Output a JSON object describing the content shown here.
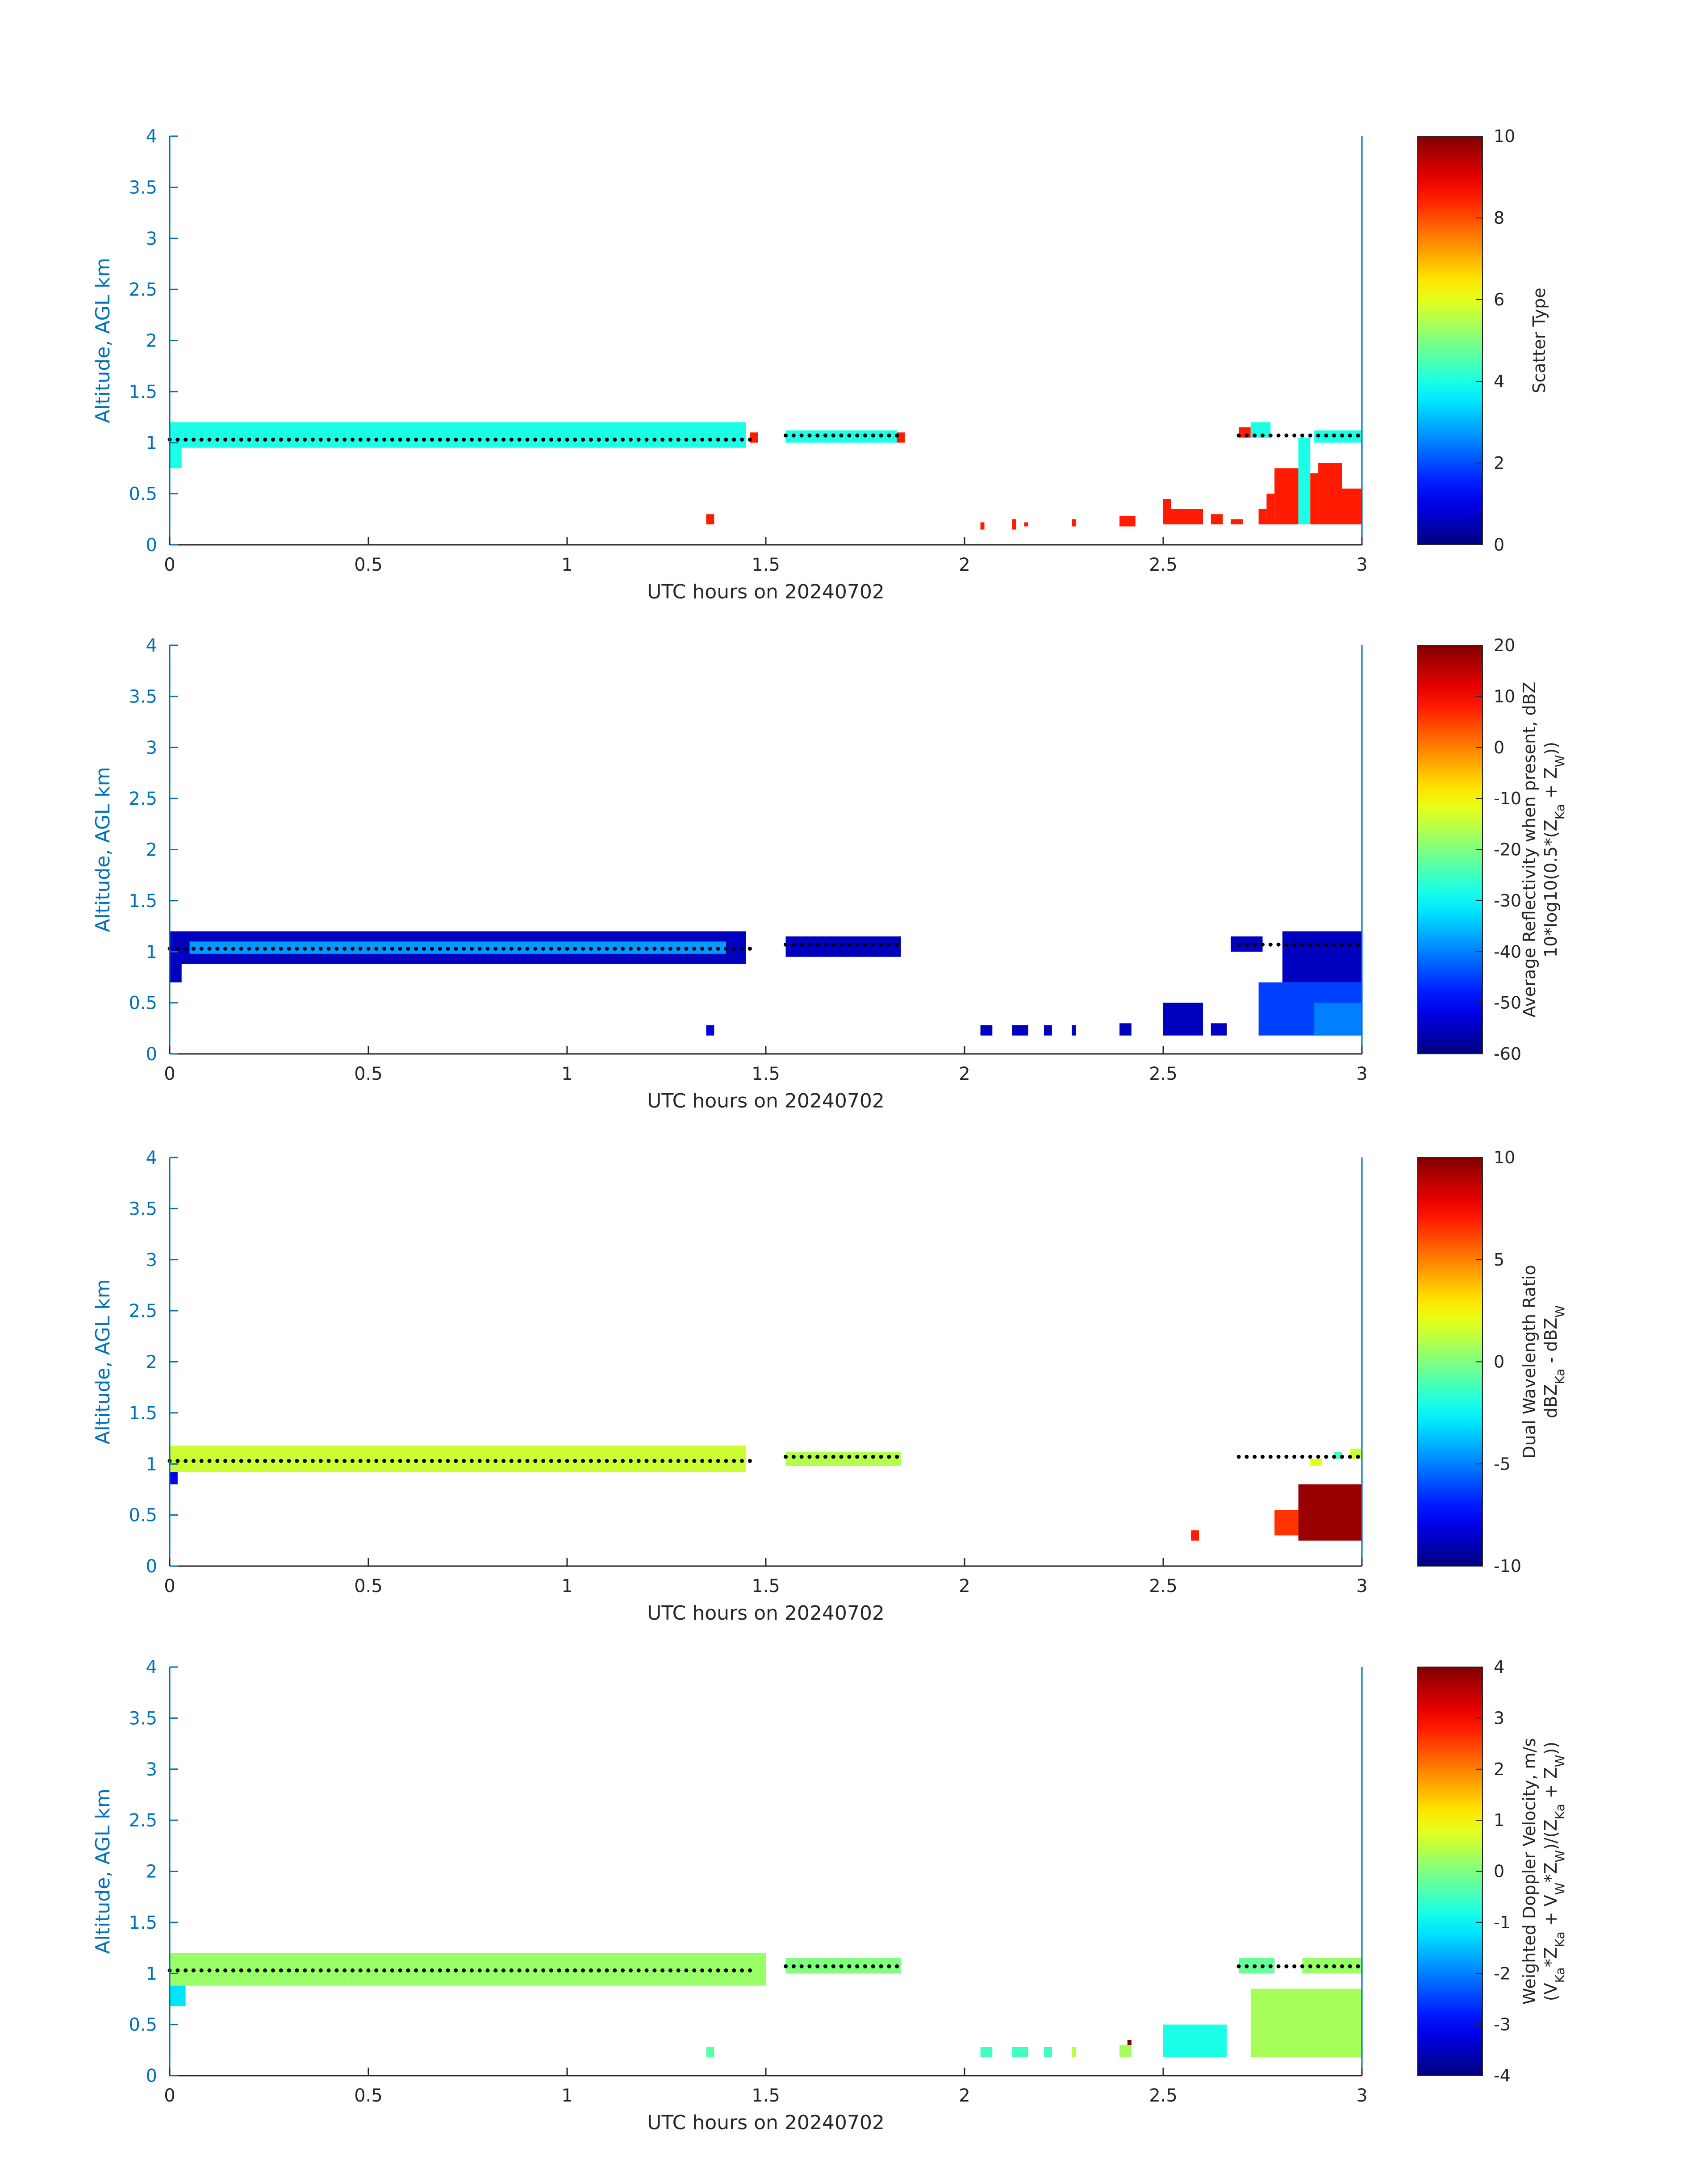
{
  "chart_data": [
    {
      "type": "heatmap",
      "xlabel": "UTC hours on 20240702",
      "ylabel": "Altitude, AGL km",
      "xlim": [
        0,
        3
      ],
      "ylim": [
        0,
        4
      ],
      "xticks": [
        "0",
        "0.5",
        "1",
        "1.5",
        "2",
        "2.5",
        "3"
      ],
      "yticks": [
        "0",
        "0.5",
        "1",
        "1.5",
        "2",
        "2.5",
        "3",
        "3.5",
        "4"
      ],
      "colorbar": {
        "label_lines": [
          "Scatter Type"
        ],
        "ticks": [
          "0",
          "2",
          "4",
          "6",
          "8",
          "10"
        ],
        "clim": [
          0,
          10
        ],
        "colormap": "jet"
      },
      "cells": [
        {
          "x": [
            0.0,
            1.45
          ],
          "y": [
            0.95,
            1.2
          ],
          "value": 4.0
        },
        {
          "x": [
            0.0,
            0.03
          ],
          "y": [
            0.75,
            0.95
          ],
          "value": 4.0
        },
        {
          "x": [
            1.46,
            1.48
          ],
          "y": [
            1.0,
            1.1
          ],
          "value": 8.5
        },
        {
          "x": [
            1.55,
            1.83
          ],
          "y": [
            1.0,
            1.12
          ],
          "value": 4.0
        },
        {
          "x": [
            1.83,
            1.85
          ],
          "y": [
            1.0,
            1.1
          ],
          "value": 8.5
        },
        {
          "x": [
            1.35,
            1.37
          ],
          "y": [
            0.2,
            0.3
          ],
          "value": 8.5
        },
        {
          "x": [
            2.04,
            2.05
          ],
          "y": [
            0.15,
            0.22
          ],
          "value": 8.5
        },
        {
          "x": [
            2.12,
            2.13
          ],
          "y": [
            0.15,
            0.25
          ],
          "value": 8.5
        },
        {
          "x": [
            2.15,
            2.16
          ],
          "y": [
            0.18,
            0.22
          ],
          "value": 8.5
        },
        {
          "x": [
            2.27,
            2.28
          ],
          "y": [
            0.18,
            0.25
          ],
          "value": 8.5
        },
        {
          "x": [
            2.39,
            2.43
          ],
          "y": [
            0.18,
            0.28
          ],
          "value": 8.5
        },
        {
          "x": [
            2.5,
            2.52
          ],
          "y": [
            0.2,
            0.45
          ],
          "value": 8.5
        },
        {
          "x": [
            2.52,
            2.6
          ],
          "y": [
            0.2,
            0.35
          ],
          "value": 8.5
        },
        {
          "x": [
            2.62,
            2.65
          ],
          "y": [
            0.2,
            0.3
          ],
          "value": 8.5
        },
        {
          "x": [
            2.67,
            2.7
          ],
          "y": [
            0.2,
            0.25
          ],
          "value": 8.5
        },
        {
          "x": [
            2.69,
            2.72
          ],
          "y": [
            1.05,
            1.15
          ],
          "value": 8.5
        },
        {
          "x": [
            2.72,
            2.77
          ],
          "y": [
            1.05,
            1.2
          ],
          "value": 4.0
        },
        {
          "x": [
            2.74,
            2.76
          ],
          "y": [
            0.2,
            0.35
          ],
          "value": 8.5
        },
        {
          "x": [
            2.76,
            2.78
          ],
          "y": [
            0.2,
            0.5
          ],
          "value": 8.5
        },
        {
          "x": [
            2.78,
            2.84
          ],
          "y": [
            0.2,
            0.75
          ],
          "value": 8.5
        },
        {
          "x": [
            2.84,
            2.87
          ],
          "y": [
            0.2,
            1.05
          ],
          "value": 4.0
        },
        {
          "x": [
            2.87,
            2.89
          ],
          "y": [
            0.2,
            0.7
          ],
          "value": 8.5
        },
        {
          "x": [
            2.89,
            2.95
          ],
          "y": [
            0.2,
            0.8
          ],
          "value": 8.5
        },
        {
          "x": [
            2.95,
            3.0
          ],
          "y": [
            0.2,
            0.55
          ],
          "value": 8.5
        },
        {
          "x": [
            2.88,
            3.0
          ],
          "y": [
            1.0,
            1.12
          ],
          "value": 4.0
        }
      ],
      "dots": {
        "segments": [
          {
            "x": [
              0.0,
              1.47
            ],
            "y": 1.03
          },
          {
            "x": [
              1.55,
              1.84
            ],
            "y": 1.07
          },
          {
            "x": [
              2.69,
              3.0
            ],
            "y": 1.07
          }
        ]
      }
    },
    {
      "type": "heatmap",
      "xlabel": "UTC hours on 20240702",
      "ylabel": "Altitude, AGL km",
      "xlim": [
        0,
        3
      ],
      "ylim": [
        0,
        4
      ],
      "xticks": [
        "0",
        "0.5",
        "1",
        "1.5",
        "2",
        "2.5",
        "3"
      ],
      "yticks": [
        "0",
        "0.5",
        "1",
        "1.5",
        "2",
        "2.5",
        "3",
        "3.5",
        "4"
      ],
      "colorbar": {
        "label_lines": [
          "Average Reflectivity when present, dBZ",
          "10*log10(0.5*(Z",
          "Ka",
          " + Z",
          "W",
          "))"
        ],
        "ticks": [
          "-60",
          "-50",
          "-40",
          "-30",
          "-20",
          "-10",
          "0",
          "10",
          "20"
        ],
        "clim": [
          -60,
          20
        ],
        "colormap": "jet"
      },
      "cells": [
        {
          "x": [
            0.0,
            1.45
          ],
          "y": [
            0.88,
            1.2
          ],
          "value": -55
        },
        {
          "x": [
            0.05,
            1.4
          ],
          "y": [
            0.98,
            1.1
          ],
          "value": -38
        },
        {
          "x": [
            0.0,
            0.03
          ],
          "y": [
            0.7,
            0.88
          ],
          "value": -55
        },
        {
          "x": [
            1.55,
            1.84
          ],
          "y": [
            0.95,
            1.15
          ],
          "value": -55
        },
        {
          "x": [
            1.35,
            1.37
          ],
          "y": [
            0.18,
            0.28
          ],
          "value": -52
        },
        {
          "x": [
            2.04,
            2.07
          ],
          "y": [
            0.18,
            0.28
          ],
          "value": -55
        },
        {
          "x": [
            2.12,
            2.16
          ],
          "y": [
            0.18,
            0.28
          ],
          "value": -55
        },
        {
          "x": [
            2.2,
            2.22
          ],
          "y": [
            0.18,
            0.28
          ],
          "value": -55
        },
        {
          "x": [
            2.27,
            2.28
          ],
          "y": [
            0.18,
            0.28
          ],
          "value": -55
        },
        {
          "x": [
            2.39,
            2.42
          ],
          "y": [
            0.18,
            0.3
          ],
          "value": -55
        },
        {
          "x": [
            2.5,
            2.6
          ],
          "y": [
            0.18,
            0.5
          ],
          "value": -55
        },
        {
          "x": [
            2.62,
            2.66
          ],
          "y": [
            0.18,
            0.3
          ],
          "value": -55
        },
        {
          "x": [
            2.67,
            2.75
          ],
          "y": [
            1.0,
            1.15
          ],
          "value": -55
        },
        {
          "x": [
            2.74,
            3.0
          ],
          "y": [
            0.18,
            0.7
          ],
          "value": -45
        },
        {
          "x": [
            2.88,
            3.0
          ],
          "y": [
            0.18,
            0.5
          ],
          "value": -40
        },
        {
          "x": [
            2.8,
            3.0
          ],
          "y": [
            0.7,
            1.2
          ],
          "value": -55
        }
      ],
      "dots": {
        "segments": [
          {
            "x": [
              0.0,
              1.47
            ],
            "y": 1.03
          },
          {
            "x": [
              1.55,
              1.84
            ],
            "y": 1.07
          },
          {
            "x": [
              2.69,
              3.0
            ],
            "y": 1.07
          }
        ]
      }
    },
    {
      "type": "heatmap",
      "xlabel": "UTC hours on 20240702",
      "ylabel": "Altitude, AGL km",
      "xlim": [
        0,
        3
      ],
      "ylim": [
        0,
        4
      ],
      "xticks": [
        "0",
        "0.5",
        "1",
        "1.5",
        "2",
        "2.5",
        "3"
      ],
      "yticks": [
        "0",
        "0.5",
        "1",
        "1.5",
        "2",
        "2.5",
        "3",
        "3.5",
        "4"
      ],
      "colorbar": {
        "label_lines": [
          "Dual Wavelength Ratio",
          "dBZ",
          "Ka",
          " - dBZ",
          "W"
        ],
        "ticks": [
          "-10",
          "-5",
          "0",
          "5",
          "10"
        ],
        "clim": [
          -10,
          10
        ],
        "colormap": "jet"
      },
      "cells": [
        {
          "x": [
            0.0,
            1.45
          ],
          "y": [
            0.92,
            1.18
          ],
          "value": 1.5
        },
        {
          "x": [
            0.0,
            0.02
          ],
          "y": [
            0.8,
            0.92
          ],
          "value": -8
        },
        {
          "x": [
            1.55,
            1.84
          ],
          "y": [
            0.98,
            1.12
          ],
          "value": 1.0
        },
        {
          "x": [
            2.57,
            2.59
          ],
          "y": [
            0.25,
            0.35
          ],
          "value": 7.0
        },
        {
          "x": [
            2.78,
            2.84
          ],
          "y": [
            0.3,
            0.55
          ],
          "value": 6.5
        },
        {
          "x": [
            2.84,
            3.0
          ],
          "y": [
            0.25,
            0.8
          ],
          "value": 9.5
        },
        {
          "x": [
            2.87,
            2.9
          ],
          "y": [
            0.98,
            1.05
          ],
          "value": 2.0
        },
        {
          "x": [
            2.93,
            2.95
          ],
          "y": [
            1.05,
            1.12
          ],
          "value": -1.0
        },
        {
          "x": [
            2.97,
            3.0
          ],
          "y": [
            1.05,
            1.15
          ],
          "value": 1.5
        }
      ],
      "dots": {
        "segments": [
          {
            "x": [
              0.0,
              1.47
            ],
            "y": 1.03
          },
          {
            "x": [
              1.55,
              1.84
            ],
            "y": 1.07
          },
          {
            "x": [
              2.69,
              3.0
            ],
            "y": 1.07
          }
        ]
      }
    },
    {
      "type": "heatmap",
      "xlabel": "UTC hours on 20240702",
      "ylabel": "Altitude, AGL km",
      "xlim": [
        0,
        3
      ],
      "ylim": [
        0,
        4
      ],
      "xticks": [
        "0",
        "0.5",
        "1",
        "1.5",
        "2",
        "2.5",
        "3"
      ],
      "yticks": [
        "0",
        "0.5",
        "1",
        "1.5",
        "2",
        "2.5",
        "3",
        "3.5",
        "4"
      ],
      "colorbar": {
        "label_lines": [
          "Weighted Doppler Velocity, m/s",
          "(V",
          "Ka",
          "*Z",
          "Ka",
          " + V",
          "W",
          "*Z",
          "W",
          ")/(Z",
          "Ka",
          " + Z",
          "W",
          "))"
        ],
        "ticks": [
          "-4",
          "-3",
          "-2",
          "-1",
          "0",
          "1",
          "2",
          "3",
          "4"
        ],
        "clim": [
          -4,
          4
        ],
        "colormap": "jet"
      },
      "cells": [
        {
          "x": [
            0.0,
            1.5
          ],
          "y": [
            0.88,
            1.2
          ],
          "value": 0.2
        },
        {
          "x": [
            0.0,
            0.04
          ],
          "y": [
            0.68,
            0.88
          ],
          "value": -1.2
        },
        {
          "x": [
            1.55,
            1.84
          ],
          "y": [
            1.0,
            1.15
          ],
          "value": 0.0
        },
        {
          "x": [
            1.35,
            1.37
          ],
          "y": [
            0.18,
            0.28
          ],
          "value": -0.3
        },
        {
          "x": [
            2.04,
            2.07
          ],
          "y": [
            0.18,
            0.28
          ],
          "value": -0.5
        },
        {
          "x": [
            2.12,
            2.16
          ],
          "y": [
            0.18,
            0.28
          ],
          "value": -0.5
        },
        {
          "x": [
            2.2,
            2.22
          ],
          "y": [
            0.18,
            0.28
          ],
          "value": -0.5
        },
        {
          "x": [
            2.27,
            2.28
          ],
          "y": [
            0.18,
            0.28
          ],
          "value": 0.5
        },
        {
          "x": [
            2.39,
            2.42
          ],
          "y": [
            0.18,
            0.3
          ],
          "value": 0.3
        },
        {
          "x": [
            2.41,
            2.42
          ],
          "y": [
            0.3,
            0.35
          ],
          "value": 4.0
        },
        {
          "x": [
            2.5,
            2.66
          ],
          "y": [
            0.18,
            0.5
          ],
          "value": -0.8
        },
        {
          "x": [
            2.69,
            2.78
          ],
          "y": [
            1.0,
            1.15
          ],
          "value": -0.2
        },
        {
          "x": [
            2.72,
            3.0
          ],
          "y": [
            0.18,
            0.85
          ],
          "value": 0.3
        },
        {
          "x": [
            2.85,
            3.0
          ],
          "y": [
            1.0,
            1.15
          ],
          "value": 0.2
        }
      ],
      "dots": {
        "segments": [
          {
            "x": [
              0.0,
              1.47
            ],
            "y": 1.03
          },
          {
            "x": [
              1.55,
              1.84
            ],
            "y": 1.07
          },
          {
            "x": [
              2.69,
              3.0
            ],
            "y": 1.07
          }
        ]
      }
    }
  ]
}
